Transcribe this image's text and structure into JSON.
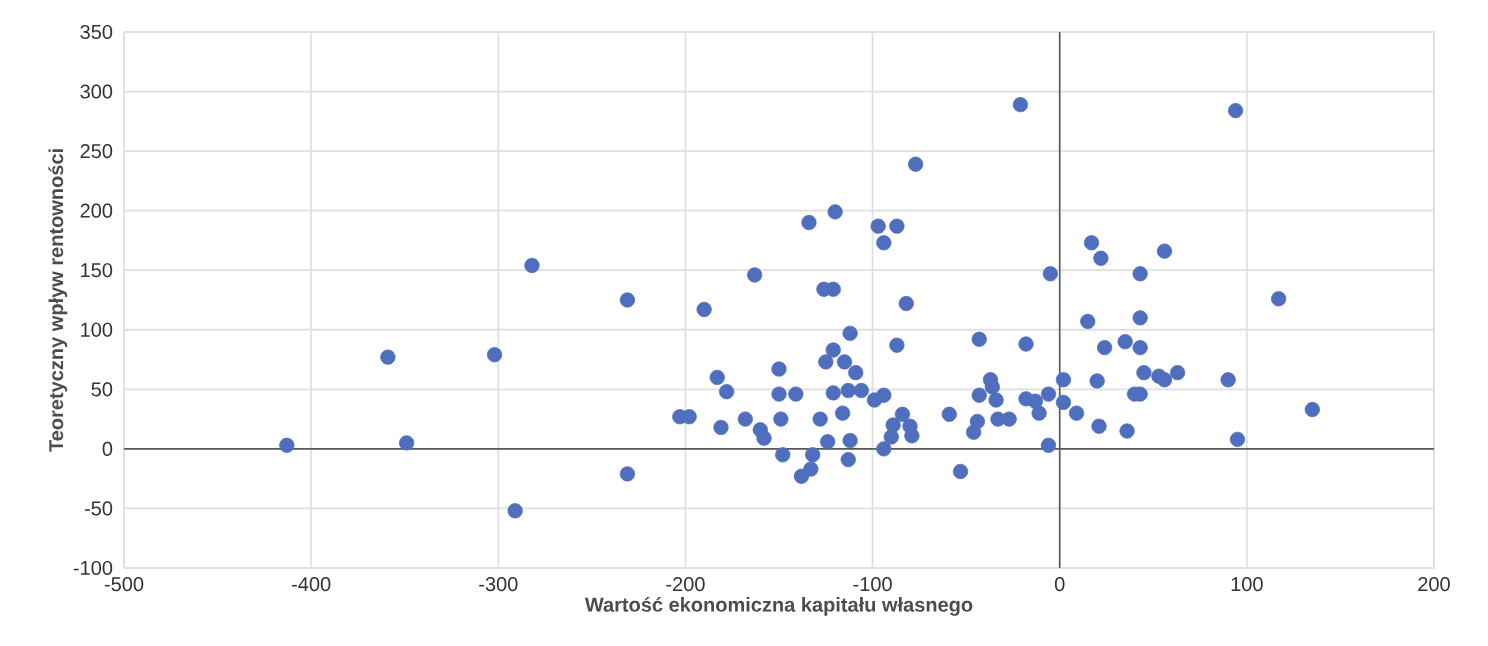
{
  "chart_data": {
    "type": "scatter",
    "xlabel": "Wartość ekonomiczna kapitału własnego",
    "ylabel": "Teoretyczny wpływ rentowności",
    "xlim": [
      -500,
      200
    ],
    "ylim": [
      -100,
      350
    ],
    "xticks": [
      -500,
      -400,
      -300,
      -200,
      -100,
      0,
      100,
      200
    ],
    "yticks": [
      -100,
      -50,
      0,
      50,
      100,
      150,
      200,
      250,
      300,
      350
    ],
    "grid": true,
    "marker": "circle",
    "series": [
      {
        "color": "#4f6fbe",
        "x": [
          -413,
          -359,
          -349,
          -302,
          -291,
          -282,
          -231,
          -231,
          -190,
          -203,
          -198,
          -183,
          -178,
          -181,
          -168,
          -163,
          -160,
          -158,
          -150,
          -150,
          -141,
          -149,
          -148,
          -134,
          -120,
          -126,
          -121,
          -128,
          -124,
          -132,
          -133,
          -138,
          -112,
          -121,
          -125,
          -115,
          -109,
          -121,
          -113,
          -106,
          -116,
          -112,
          -113,
          -97,
          -87,
          -94,
          -82,
          -87,
          -99,
          -94,
          -94,
          -84,
          -89,
          -80,
          -79,
          -90,
          -59,
          -53,
          -43,
          -46,
          -44,
          -37,
          -36,
          -43,
          -34,
          -33,
          -27,
          -18,
          -5,
          -6,
          -18,
          -13,
          -11,
          -6,
          -21,
          94,
          -77,
          17,
          22,
          56,
          43,
          117,
          15,
          43,
          24,
          35,
          43,
          45,
          53,
          56,
          63,
          90,
          135,
          95,
          20,
          2,
          2,
          9,
          21,
          36,
          40,
          43
        ],
        "values": [
          3,
          77,
          5,
          79,
          -52,
          154,
          125,
          -21,
          117,
          27,
          27,
          60,
          48,
          18,
          25,
          146,
          16,
          9,
          67,
          46,
          46,
          25,
          -5,
          190,
          199,
          134,
          134,
          25,
          6,
          -5,
          -17,
          -23,
          97,
          83,
          73,
          73,
          64,
          47,
          49,
          49,
          30,
          7,
          -9,
          187,
          187,
          173,
          122,
          87,
          41,
          45,
          0,
          29,
          20,
          19,
          11,
          10,
          29,
          -19,
          92,
          14,
          23,
          58,
          52,
          45,
          41,
          25,
          25,
          88,
          147,
          3,
          42,
          40,
          30,
          46,
          289,
          284,
          239,
          173,
          160,
          166,
          147,
          126,
          107,
          110,
          85,
          90,
          85,
          64,
          61,
          58,
          64,
          58,
          33,
          8,
          57,
          58,
          39,
          30,
          19,
          15,
          46,
          46
        ]
      }
    ]
  }
}
